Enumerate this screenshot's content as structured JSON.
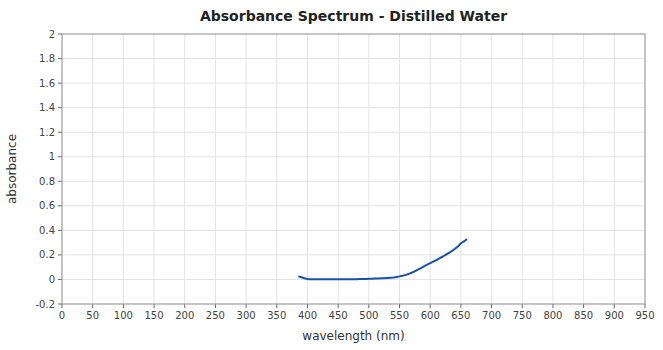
{
  "chart_data": {
    "type": "line",
    "title": "Absorbance Spectrum - Distilled Water",
    "xlabel": "wavelength (nm)",
    "ylabel": "absorbance",
    "x": [
      385,
      390,
      395,
      400,
      403,
      406,
      410,
      415,
      420,
      425,
      430,
      435,
      440,
      445,
      450,
      455,
      460,
      465,
      470,
      475,
      480,
      485,
      490,
      495,
      500,
      505,
      510,
      515,
      520,
      525,
      530,
      535,
      540,
      545,
      550,
      555,
      560,
      565,
      570,
      575,
      580,
      585,
      590,
      595,
      600,
      605,
      610,
      615,
      620,
      625,
      630,
      635,
      640,
      645,
      650,
      655,
      660
    ],
    "values": [
      0.025,
      0.018,
      0.01,
      0.004,
      0.001,
      0.001,
      0.001,
      0.001,
      0.001,
      0.001,
      0.001,
      0.001,
      0.001,
      0.001,
      0.002,
      0.002,
      0.002,
      0.002,
      0.002,
      0.002,
      0.002,
      0.003,
      0.003,
      0.004,
      0.005,
      0.006,
      0.007,
      0.008,
      0.009,
      0.01,
      0.012,
      0.014,
      0.016,
      0.02,
      0.025,
      0.03,
      0.037,
      0.045,
      0.055,
      0.067,
      0.08,
      0.093,
      0.107,
      0.12,
      0.133,
      0.145,
      0.158,
      0.172,
      0.185,
      0.2,
      0.215,
      0.23,
      0.248,
      0.268,
      0.295,
      0.31,
      0.33
    ],
    "color": "#1a4faa",
    "xlim": [
      0,
      950
    ],
    "ylim": [
      -0.2,
      2.0
    ],
    "xticks": [
      0,
      50,
      100,
      150,
      200,
      250,
      300,
      350,
      400,
      450,
      500,
      550,
      600,
      650,
      700,
      750,
      800,
      850,
      900,
      950
    ],
    "yticks": [
      -0.2,
      0,
      0.2,
      0.4,
      0.6,
      0.8,
      1,
      1.2,
      1.4,
      1.6,
      1.8,
      2
    ],
    "grid": true
  }
}
